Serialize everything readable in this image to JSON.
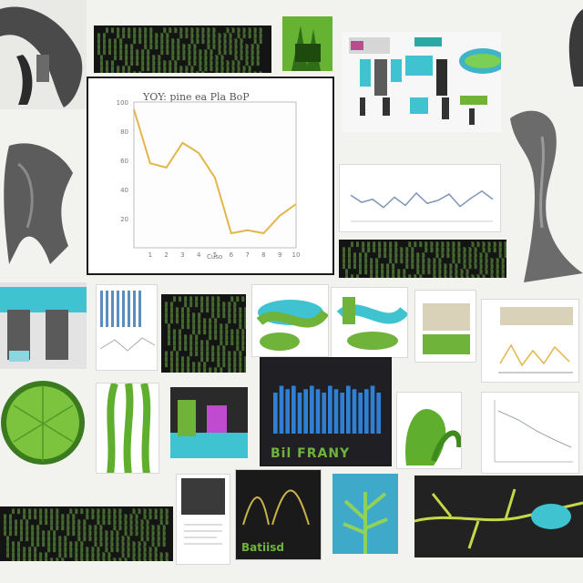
{
  "main_chart": {
    "title": "YOY: pine ea Pla BoP",
    "xticks": [
      "1",
      "2",
      "3",
      "4",
      "5",
      "6",
      "7",
      "8",
      "9",
      "10"
    ],
    "yticks": [
      "20",
      "40",
      "60",
      "80",
      "100"
    ],
    "x": [
      0,
      1,
      2,
      3,
      4,
      5,
      6,
      7,
      8,
      9,
      10
    ],
    "y": [
      95,
      58,
      55,
      72,
      65,
      48,
      10,
      12,
      10,
      22,
      30
    ],
    "caption": "Cuso",
    "series_color": "#e2b64a"
  },
  "right_chart": {
    "values": [
      62,
      55,
      58,
      50,
      60,
      52,
      64,
      54,
      57,
      63,
      51,
      59,
      66,
      58
    ],
    "series_color": "#7f96b8"
  },
  "bar_chart": {
    "values": [
      12,
      14,
      13,
      14,
      12,
      13,
      14,
      13,
      12,
      14,
      13,
      12,
      14,
      13,
      12,
      13,
      14,
      12
    ],
    "bar_color": "#2f7fd3",
    "footer_text": "Bil FRANY"
  },
  "bottom_center": {
    "footer_text": "Batiisd"
  },
  "theme": {
    "leaf_green": "#6fb33a",
    "teal": "#3fc3d1",
    "terminal_green": "#73b84a"
  }
}
